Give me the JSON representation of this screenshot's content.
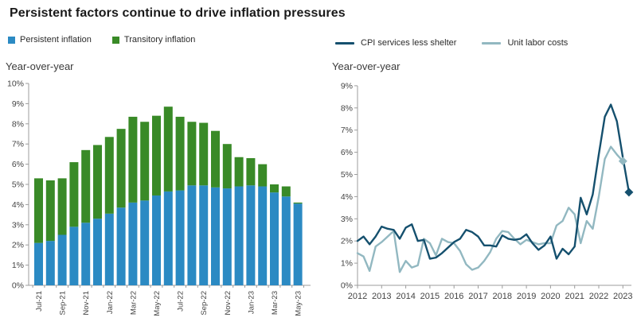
{
  "page": {
    "title": "Persistent factors continue to drive inflation pressures"
  },
  "colors": {
    "persistent_blue": "#2b8ac3",
    "transitory_green": "#398a27",
    "cpi_line_dark": "#15506e",
    "ulc_line_light": "#92b8c1",
    "axis_gray": "#9c9c9c",
    "label_text": "#444444",
    "title_text": "#1a1a1a"
  },
  "chart_data": [
    {
      "type": "bar",
      "stacked": true,
      "panel": "left",
      "subtitle": "Year-over-year",
      "unit": "percent, year-over-year",
      "categories": [
        "Jul-21",
        "Aug-21",
        "Sep-21",
        "Oct-21",
        "Nov-21",
        "Dec-21",
        "Jan-22",
        "Feb-22",
        "Mar-22",
        "Apr-22",
        "May-22",
        "Jun-22",
        "Jul-22",
        "Aug-22",
        "Sep-22",
        "Oct-22",
        "Nov-22",
        "Dec-22",
        "Jan-23",
        "Feb-23",
        "Mar-23",
        "Apr-23",
        "May-23"
      ],
      "x_tick_labels": [
        "Jul-21",
        "Sep-21",
        "Nov-21",
        "Jan-22",
        "Mar-22",
        "May-22",
        "Jul-22",
        "Sep-22",
        "Nov-22",
        "Jan-23",
        "Mar-23",
        "May-23"
      ],
      "y_tick_labels": [
        "0%",
        "1%",
        "2%",
        "3%",
        "4%",
        "5%",
        "6%",
        "7%",
        "8%",
        "9%",
        "10%"
      ],
      "ylim": [
        0,
        10
      ],
      "series": [
        {
          "name": "Persistent inflation",
          "role": "persistent",
          "color": "#2b8ac3",
          "values": [
            2.1,
            2.2,
            2.5,
            2.9,
            3.1,
            3.3,
            3.55,
            3.85,
            4.1,
            4.2,
            4.45,
            4.65,
            4.7,
            4.95,
            4.95,
            4.85,
            4.8,
            4.9,
            4.95,
            4.9,
            4.6,
            4.4,
            4.05
          ]
        },
        {
          "name": "Transitory inflation",
          "role": "transitory",
          "color": "#398a27",
          "values": [
            3.2,
            3.0,
            2.8,
            3.2,
            3.6,
            3.65,
            3.8,
            3.9,
            4.25,
            3.9,
            3.95,
            4.2,
            3.65,
            3.15,
            3.1,
            2.8,
            2.2,
            1.45,
            1.35,
            1.1,
            0.4,
            0.5,
            0.05
          ]
        }
      ]
    },
    {
      "type": "line",
      "panel": "right",
      "subtitle": "Year-over-year",
      "unit": "percent, year-over-year",
      "x_tick_labels": [
        "2012",
        "2013",
        "2014",
        "2015",
        "2016",
        "2017",
        "2018",
        "2019",
        "2020",
        "2021",
        "2022",
        "2023"
      ],
      "y_tick_labels": [
        "0%",
        "1%",
        "2%",
        "3%",
        "4%",
        "5%",
        "6%",
        "7%",
        "8%",
        "9%"
      ],
      "ylim": [
        0,
        9
      ],
      "xlim": [
        2012,
        2023.4
      ],
      "series": [
        {
          "name": "CPI services less shelter",
          "role": "cpi",
          "color": "#15506e",
          "x_start": 2012,
          "x_step": 0.25,
          "end_marker": "diamond",
          "values": [
            2.0,
            2.2,
            1.85,
            2.2,
            2.65,
            2.55,
            2.5,
            2.1,
            2.6,
            2.75,
            2.0,
            2.05,
            1.2,
            1.25,
            1.45,
            1.7,
            1.95,
            2.1,
            2.5,
            2.4,
            2.2,
            1.8,
            1.8,
            1.75,
            2.25,
            2.1,
            2.05,
            2.1,
            2.3,
            1.9,
            1.6,
            1.8,
            2.2,
            1.2,
            1.65,
            1.4,
            1.75,
            3.95,
            3.2,
            4.1,
            5.9,
            7.6,
            8.15,
            7.4,
            5.75,
            4.2
          ]
        },
        {
          "name": "Unit labor costs",
          "role": "ulc",
          "color": "#92b8c1",
          "x_start": 2012,
          "x_step": 0.25,
          "end_marker": "diamond",
          "values": [
            1.45,
            1.3,
            0.65,
            1.75,
            1.95,
            2.2,
            2.45,
            0.6,
            1.1,
            0.8,
            0.9,
            2.1,
            1.9,
            1.35,
            2.1,
            1.95,
            1.9,
            1.55,
            0.95,
            0.7,
            0.8,
            1.1,
            1.5,
            2.1,
            2.45,
            2.4,
            2.1,
            1.85,
            2.05,
            1.95,
            1.85,
            1.9,
            1.9,
            2.7,
            2.9,
            3.5,
            3.2,
            1.9,
            2.9,
            2.55,
            4.0,
            5.7,
            6.25,
            5.9,
            5.6
          ]
        }
      ]
    }
  ]
}
